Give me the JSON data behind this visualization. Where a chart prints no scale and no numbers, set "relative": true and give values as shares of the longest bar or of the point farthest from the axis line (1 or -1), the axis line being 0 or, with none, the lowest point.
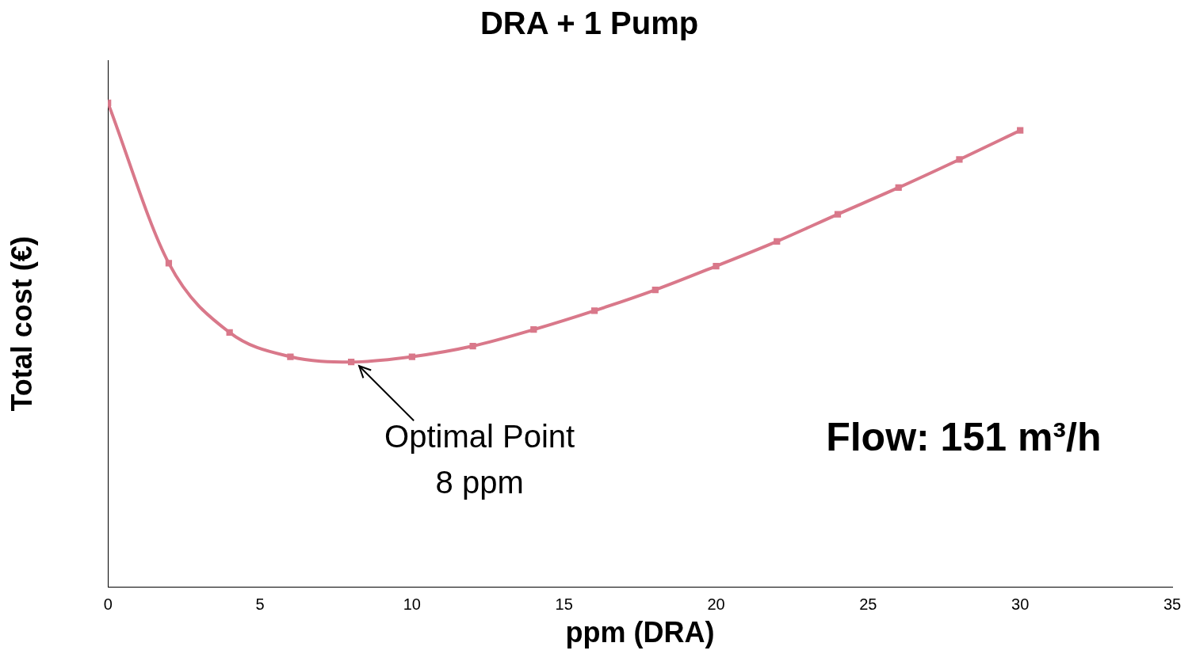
{
  "chart_data": {
    "type": "line",
    "title": "DRA + 1 Pump",
    "xlabel": "ppm (DRA)",
    "ylabel": "Total cost (€)",
    "relative": true,
    "x": [
      0,
      2,
      4,
      6,
      8,
      10,
      12,
      14,
      16,
      18,
      20,
      22,
      24,
      26,
      28,
      30
    ],
    "series": [
      {
        "color": "#d9788a",
        "values": [
          1,
          0.669,
          0.526,
          0.476,
          0.465,
          0.476,
          0.498,
          0.532,
          0.571,
          0.614,
          0.663,
          0.714,
          0.77,
          0.825,
          0.883,
          0.943
        ]
      }
    ],
    "xlim": [
      0,
      35
    ],
    "xticks": [
      0,
      5,
      10,
      15,
      20,
      25,
      30,
      35
    ],
    "grid": false,
    "legend": false,
    "marker": "square",
    "line_style": "solid",
    "annotations": [
      {
        "text": "Optimal Point\n8 ppm",
        "x": 8,
        "y": 0.465
      },
      "Flow: 151 m³/h"
    ]
  }
}
